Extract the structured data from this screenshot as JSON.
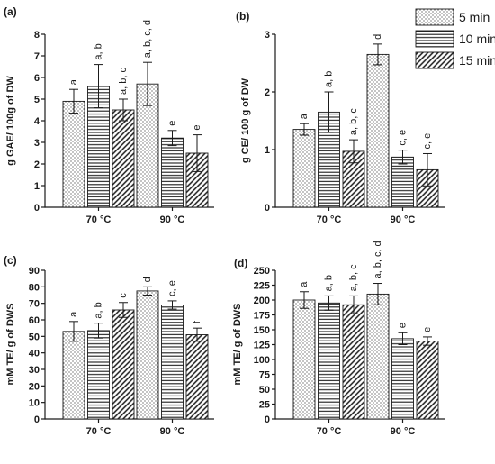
{
  "legend": [
    {
      "label": "5 min",
      "pattern": "dots"
    },
    {
      "label": "10 min",
      "pattern": "hlines"
    },
    {
      "label": "15 min",
      "pattern": "diag"
    }
  ],
  "chart_data": [
    {
      "type": "bar",
      "panel_tag": "(a)",
      "categories": [
        "70 °C",
        "90 °C"
      ],
      "series_labels": [
        "5 min",
        "10 min",
        "15 min"
      ],
      "values": [
        [
          4.9,
          5.6,
          4.5
        ],
        [
          5.7,
          3.2,
          2.5
        ]
      ],
      "errors": [
        [
          0.55,
          1.0,
          0.5
        ],
        [
          1.0,
          0.35,
          0.85
        ]
      ],
      "significance": [
        [
          "a",
          "a, b",
          "a, b, c"
        ],
        [
          "a, b, c, d",
          "e",
          "e"
        ]
      ],
      "ylabel": "g GAE/ 100g of DW",
      "ylim": [
        0,
        8
      ],
      "yticks": [
        0,
        1,
        2,
        3,
        4,
        5,
        6,
        7,
        8
      ],
      "grid": false
    },
    {
      "type": "bar",
      "panel_tag": "(b)",
      "categories": [
        "70 °C",
        "90 °C"
      ],
      "series_labels": [
        "5 min",
        "10 min",
        "15 min"
      ],
      "values": [
        [
          1.35,
          1.65,
          0.97
        ],
        [
          2.65,
          0.87,
          0.65
        ]
      ],
      "errors": [
        [
          0.1,
          0.35,
          0.2
        ],
        [
          0.18,
          0.12,
          0.28
        ]
      ],
      "significance": [
        [
          "a",
          "a, b",
          "a, b, c"
        ],
        [
          "d",
          "c, e",
          "c, e"
        ]
      ],
      "ylabel": "g CE/ 100 g of DW",
      "ylim": [
        0,
        3
      ],
      "yticks": [
        0,
        1,
        2,
        3
      ],
      "grid": false
    },
    {
      "type": "bar",
      "panel_tag": "(c)",
      "categories": [
        "70 °C",
        "90 °C"
      ],
      "series_labels": [
        "5 min",
        "10 min",
        "15 min"
      ],
      "values": [
        [
          53,
          53.5,
          66
        ],
        [
          77.5,
          69,
          51
        ]
      ],
      "errors": [
        [
          6,
          4.5,
          4.5
        ],
        [
          2.5,
          2.5,
          4
        ]
      ],
      "significance": [
        [
          "a",
          "a, b",
          "c"
        ],
        [
          "d",
          "c, e",
          "f"
        ]
      ],
      "ylabel": "mM TE/ g of DWS",
      "ylim": [
        0,
        90
      ],
      "yticks": [
        0,
        10,
        20,
        30,
        40,
        50,
        60,
        70,
        80,
        90
      ],
      "grid": false
    },
    {
      "type": "bar",
      "panel_tag": "(d)",
      "categories": [
        "70 °C",
        "90 °C"
      ],
      "series_labels": [
        "5 min",
        "10 min",
        "15 min"
      ],
      "values": [
        [
          200,
          195,
          192
        ],
        [
          210,
          135,
          131
        ]
      ],
      "errors": [
        [
          14,
          12,
          15
        ],
        [
          18,
          10,
          7
        ]
      ],
      "significance": [
        [
          "a",
          "a, b",
          "a, b, c"
        ],
        [
          "a, b, c, d",
          "e",
          "e"
        ]
      ],
      "ylabel": "mM TE/ g of DWS",
      "ylim": [
        0,
        250
      ],
      "yticks": [
        0,
        25,
        50,
        75,
        100,
        125,
        150,
        175,
        200,
        225,
        250
      ],
      "grid": false
    }
  ]
}
